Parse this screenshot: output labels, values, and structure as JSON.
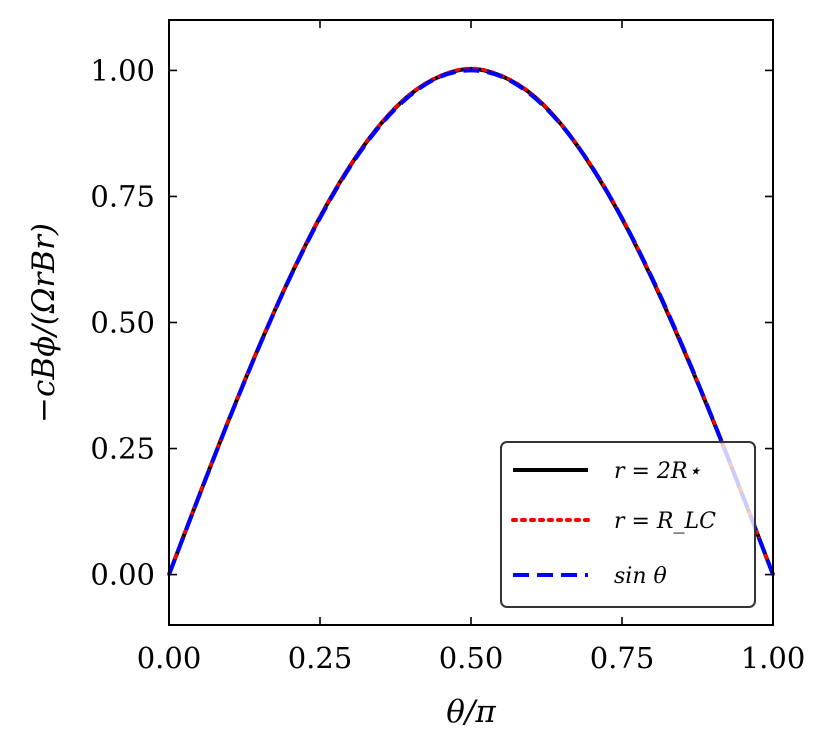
{
  "chart_data": {
    "type": "line",
    "title": "",
    "xlabel": "θ/π",
    "ylabel": "−cBϕ/(ΩrBr)",
    "xlim": [
      0,
      1
    ],
    "ylim": [
      -0.1,
      1.1
    ],
    "x_ticks": [
      "0.00",
      "0.25",
      "0.50",
      "0.75",
      "1.00"
    ],
    "y_ticks": [
      "0.00",
      "0.25",
      "0.50",
      "0.75",
      "1.00"
    ],
    "x_tick_values": [
      0,
      0.25,
      0.5,
      0.75,
      1.0
    ],
    "y_tick_values": [
      0,
      0.25,
      0.5,
      0.75,
      1.0
    ],
    "grid": false,
    "legend_position": "bottom-right",
    "x": [
      0,
      0.05,
      0.1,
      0.15,
      0.2,
      0.25,
      0.3,
      0.35,
      0.4,
      0.45,
      0.5,
      0.55,
      0.6,
      0.65,
      0.7,
      0.75,
      0.8,
      0.85,
      0.9,
      0.95,
      1.0
    ],
    "series": [
      {
        "name": "r = 2R⋆",
        "color": "#000000",
        "style": "solid",
        "values": [
          0.0,
          0.157,
          0.31,
          0.455,
          0.589,
          0.709,
          0.811,
          0.893,
          0.953,
          0.989,
          1.003,
          0.989,
          0.953,
          0.892,
          0.808,
          0.706,
          0.586,
          0.452,
          0.308,
          0.156,
          0.0
        ]
      },
      {
        "name": "r = R_LC",
        "color": "#ff0000",
        "style": "dotted",
        "values": [
          0.0,
          0.158,
          0.311,
          0.456,
          0.59,
          0.71,
          0.812,
          0.894,
          0.954,
          0.99,
          1.004,
          0.99,
          0.954,
          0.893,
          0.81,
          0.708,
          0.588,
          0.454,
          0.31,
          0.157,
          0.0
        ]
      },
      {
        "name": "sin θ",
        "color": "#0000ff",
        "style": "dashed",
        "values": [
          0.0,
          0.156,
          0.309,
          0.454,
          0.588,
          0.707,
          0.809,
          0.891,
          0.951,
          0.988,
          1.0,
          0.988,
          0.951,
          0.891,
          0.809,
          0.707,
          0.588,
          0.454,
          0.309,
          0.156,
          0.0
        ]
      }
    ]
  }
}
